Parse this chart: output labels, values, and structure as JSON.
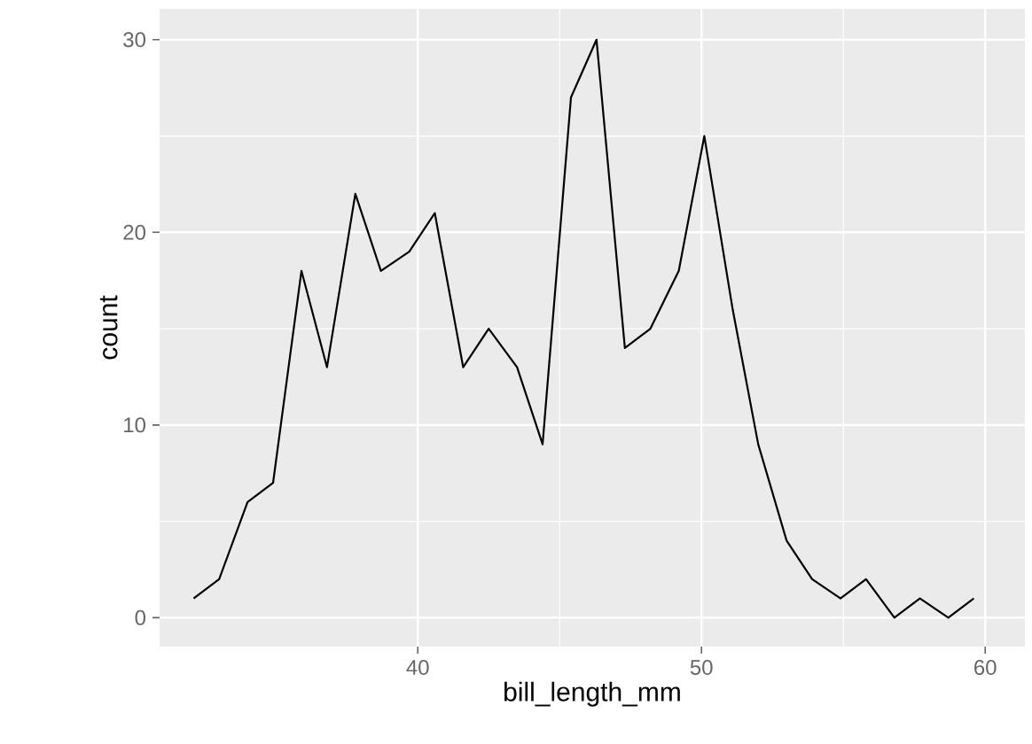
{
  "chart_data": {
    "type": "line",
    "xlabel": "bill_length_mm",
    "ylabel": "count",
    "x": [
      32.1,
      33.0,
      34.0,
      34.9,
      35.9,
      36.8,
      37.8,
      38.7,
      39.7,
      40.6,
      41.6,
      42.5,
      43.5,
      44.4,
      45.4,
      46.3,
      47.3,
      48.2,
      49.2,
      50.1,
      51.1,
      52.0,
      53.0,
      53.9,
      54.9,
      55.8,
      56.8,
      57.7,
      58.7,
      59.6
    ],
    "series": [
      {
        "color": "#000000",
        "values": [
          1,
          2,
          6,
          7,
          18,
          13,
          22,
          18,
          19,
          21,
          13,
          15,
          13,
          9,
          27,
          30,
          14,
          15,
          18,
          25,
          16,
          9,
          4,
          2,
          1,
          2,
          0,
          1,
          0,
          1
        ]
      }
    ],
    "xlim": [
      30.9,
      61.4
    ],
    "ylim": [
      -1.5,
      31.6
    ],
    "xticks": [
      40,
      50,
      60
    ],
    "yticks": [
      0,
      10,
      20,
      30
    ],
    "grid": true,
    "marker": "none",
    "line_style": "solid"
  }
}
